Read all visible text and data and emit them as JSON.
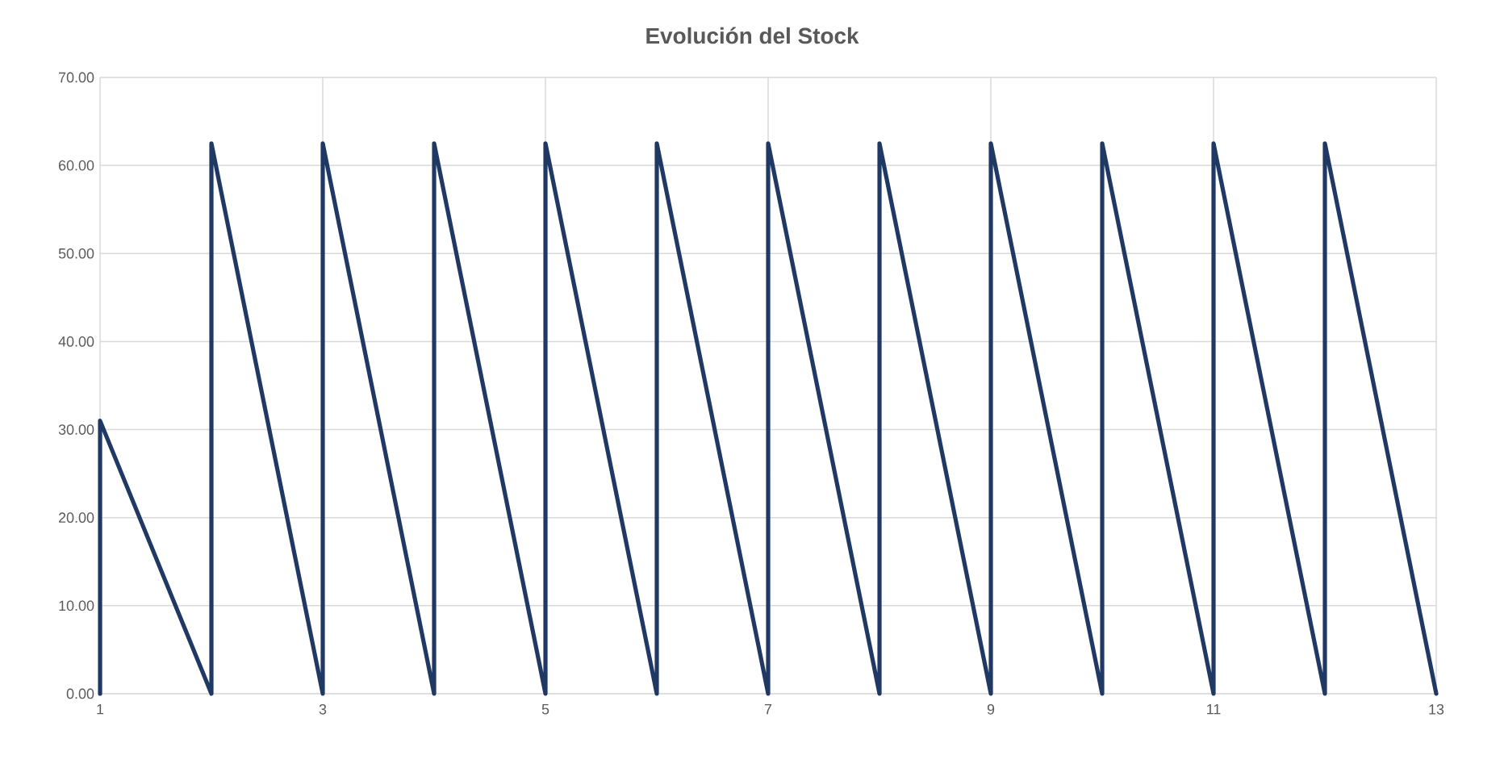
{
  "chart_data": {
    "type": "line",
    "title": "Evolución del Stock",
    "x": [
      1,
      1,
      2,
      2,
      3,
      3,
      4,
      4,
      5,
      5,
      6,
      6,
      7,
      7,
      8,
      8,
      9,
      9,
      10,
      10,
      11,
      11,
      12,
      12,
      13
    ],
    "values": [
      0,
      31,
      0,
      62.5,
      0,
      62.5,
      0,
      62.5,
      0,
      62.5,
      0,
      62.5,
      0,
      62.5,
      0,
      62.5,
      0,
      62.5,
      0,
      62.5,
      0,
      62.5,
      0,
      62.5,
      0
    ],
    "color": "#203864",
    "xlim": [
      1,
      13
    ],
    "xticks": [
      1,
      3,
      5,
      7,
      9,
      11,
      13
    ],
    "ylim": [
      0,
      70
    ],
    "yticks": [
      {
        "value": 0,
        "label": "0.00"
      },
      {
        "value": 10,
        "label": "10.00"
      },
      {
        "value": 20,
        "label": "20.00"
      },
      {
        "value": 30,
        "label": "30.00"
      },
      {
        "value": 40,
        "label": "40.00"
      },
      {
        "value": 50,
        "label": "50.00"
      },
      {
        "value": 60,
        "label": "60.00"
      },
      {
        "value": 70,
        "label": "70.00"
      }
    ],
    "grid": true,
    "marker": "none",
    "line_style": "solid"
  }
}
